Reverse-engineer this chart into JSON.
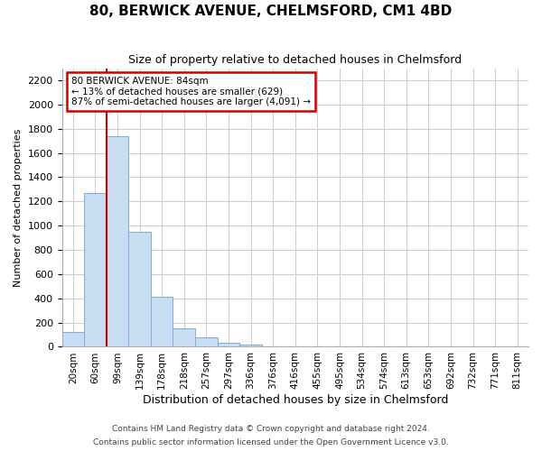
{
  "title1": "80, BERWICK AVENUE, CHELMSFORD, CM1 4BD",
  "title2": "Size of property relative to detached houses in Chelmsford",
  "xlabel": "Distribution of detached houses by size in Chelmsford",
  "ylabel": "Number of detached properties",
  "footnote1": "Contains HM Land Registry data © Crown copyright and database right 2024.",
  "footnote2": "Contains public sector information licensed under the Open Government Licence v3.0.",
  "bar_color": "#c9ddf2",
  "bar_edge_color": "#7aaedd",
  "bins": [
    "20sqm",
    "60sqm",
    "99sqm",
    "139sqm",
    "178sqm",
    "218sqm",
    "257sqm",
    "297sqm",
    "336sqm",
    "376sqm",
    "416sqm",
    "455sqm",
    "495sqm",
    "534sqm",
    "574sqm",
    "613sqm",
    "653sqm",
    "692sqm",
    "732sqm",
    "771sqm",
    "811sqm"
  ],
  "values": [
    120,
    1270,
    1740,
    950,
    415,
    150,
    75,
    35,
    20,
    0,
    0,
    0,
    0,
    0,
    0,
    0,
    0,
    0,
    0,
    0,
    0
  ],
  "ylim": [
    0,
    2300
  ],
  "yticks": [
    0,
    200,
    400,
    600,
    800,
    1000,
    1200,
    1400,
    1600,
    1800,
    2000,
    2200
  ],
  "property_line_color": "#cc0000",
  "annotation_title": "80 BERWICK AVENUE: 84sqm",
  "annotation_line1": "← 13% of detached houses are smaller (629)",
  "annotation_line2": "87% of semi-detached houses are larger (4,091) →",
  "annotation_box_facecolor": "#ffffff",
  "annotation_box_edgecolor": "#cc0000",
  "grid_color": "#cccccc",
  "background_color": "#ffffff",
  "title1_fontsize": 11,
  "title2_fontsize": 9,
  "ylabel_fontsize": 8,
  "xlabel_fontsize": 9,
  "tick_fontsize": 8,
  "xtick_fontsize": 7.5,
  "footnote_fontsize": 6.5
}
